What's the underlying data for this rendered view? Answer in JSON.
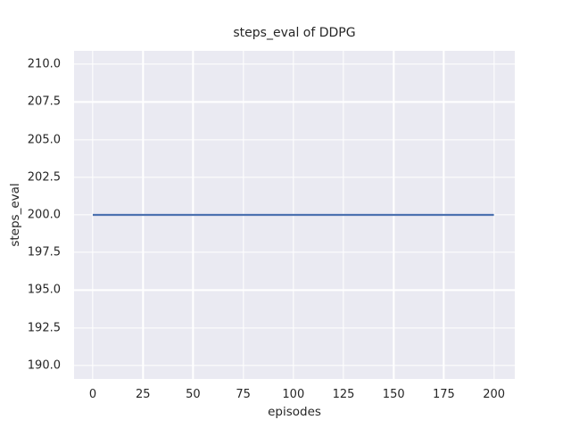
{
  "chart_data": {
    "type": "line",
    "title": "steps_eval of DDPG",
    "xlabel": "episodes",
    "ylabel": "steps_eval",
    "xlim": [
      -9.35,
      210.4
    ],
    "ylim": [
      189.1,
      210.9
    ],
    "xticks": [
      0,
      25,
      50,
      75,
      100,
      125,
      150,
      175,
      200
    ],
    "xtick_labels": [
      "0",
      "25",
      "50",
      "75",
      "100",
      "125",
      "150",
      "175",
      "200"
    ],
    "yticks": [
      190.0,
      192.5,
      195.0,
      197.5,
      200.0,
      202.5,
      205.0,
      207.5,
      210.0
    ],
    "ytick_labels": [
      "190.0",
      "192.5",
      "195.0",
      "197.5",
      "200.0",
      "202.5",
      "205.0",
      "207.5",
      "210.0"
    ],
    "grid": true,
    "legend": null,
    "style": {
      "figure_background": "#FFFFFF",
      "axes_background": "#EAEAF2",
      "grid_color": "#FFFFFF",
      "text_color": "#262626",
      "line_color": "#4C72B0"
    },
    "series": [
      {
        "name": "steps_eval",
        "color": "#4C72B0",
        "x": [
          0,
          200
        ],
        "y": [
          200,
          200
        ],
        "note": "constant value 200 across all episodes"
      }
    ]
  }
}
